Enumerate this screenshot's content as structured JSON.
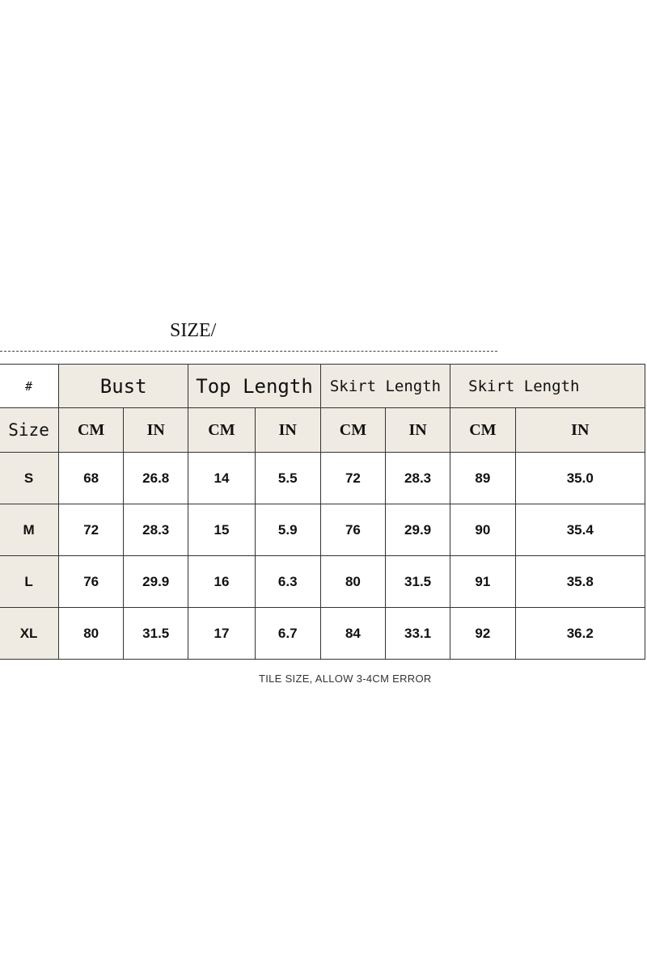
{
  "title": "SIZE/",
  "table": {
    "corner": "#",
    "groups": [
      "Bust",
      "Top Length",
      "Skirt Length",
      "Skirt Length"
    ],
    "size_label": "Size",
    "units": [
      "CM",
      "IN",
      "CM",
      "IN",
      "CM",
      "IN",
      "CM",
      "IN"
    ],
    "rows": [
      {
        "size": "S",
        "values": [
          "68",
          "26.8",
          "14",
          "5.5",
          "72",
          "28.3",
          "89",
          "35.0"
        ]
      },
      {
        "size": "M",
        "values": [
          "72",
          "28.3",
          "15",
          "5.9",
          "76",
          "29.9",
          "90",
          "35.4"
        ]
      },
      {
        "size": "L",
        "values": [
          "76",
          "29.9",
          "16",
          "6.3",
          "80",
          "31.5",
          "91",
          "35.8"
        ]
      },
      {
        "size": "XL",
        "values": [
          "80",
          "31.5",
          "17",
          "6.7",
          "84",
          "33.1",
          "92",
          "36.2"
        ]
      }
    ]
  },
  "note": "TILE SIZE, ALLOW 3-4CM ERROR",
  "colors": {
    "header_bg": "#efebe2",
    "border": "#333333"
  }
}
